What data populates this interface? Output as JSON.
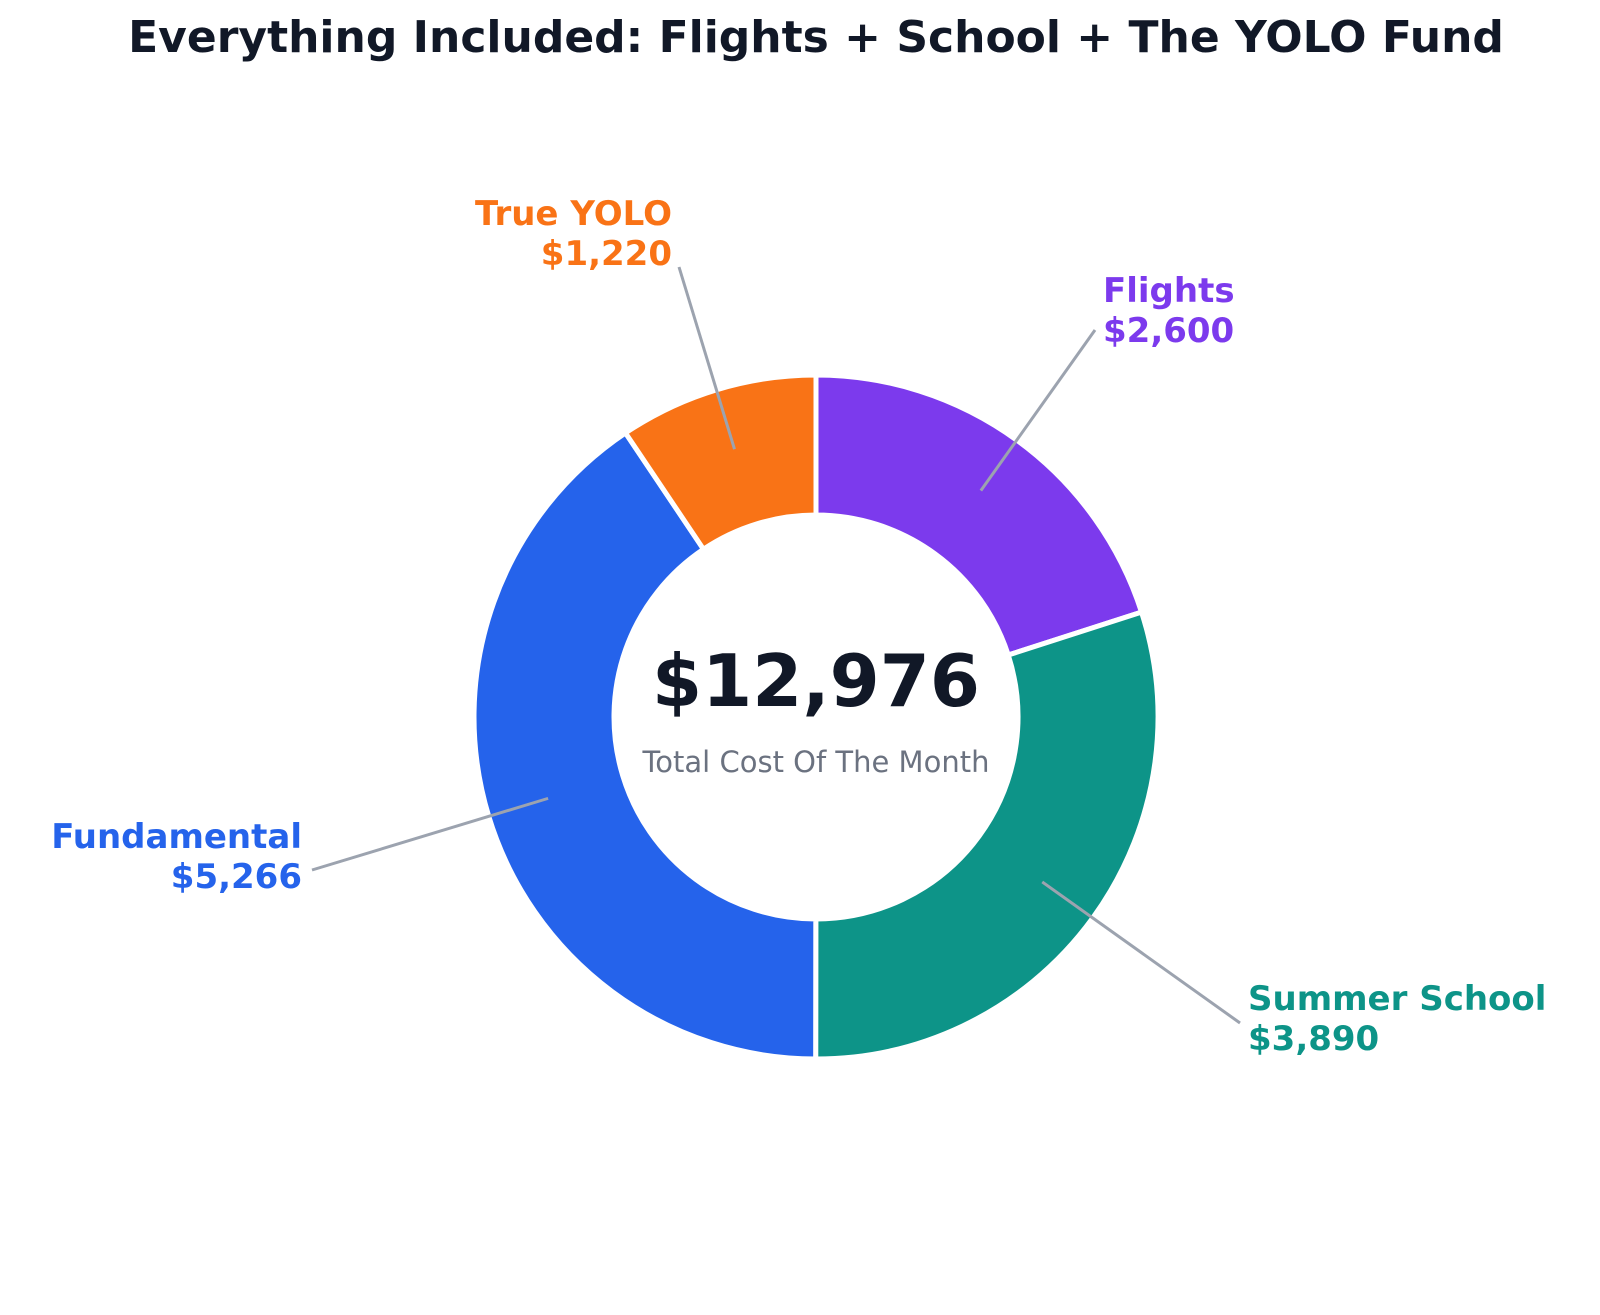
{
  "chart_data": {
    "type": "pie",
    "donut": true,
    "title": "Everything Included: Flights + School + The YOLO Fund",
    "center": {
      "value": "$12,976",
      "caption": "Total Cost Of The Month"
    },
    "start_angle_deg": 0,
    "direction": "clockwise",
    "slices": [
      {
        "name": "Flights",
        "value": 2600,
        "value_label": "$2,600",
        "color": "#7c3aed"
      },
      {
        "name": "Summer School",
        "value": 3890,
        "value_label": "$3,890",
        "color": "#0d9488"
      },
      {
        "name": "Fundamental",
        "value": 5266,
        "value_label": "$5,266",
        "color": "#2563eb"
      },
      {
        "name": "True YOLO",
        "value": 1220,
        "value_label": "$1,220",
        "color": "#f97316"
      }
    ],
    "leader_line_color": "#9ca3af",
    "legend": "none"
  }
}
